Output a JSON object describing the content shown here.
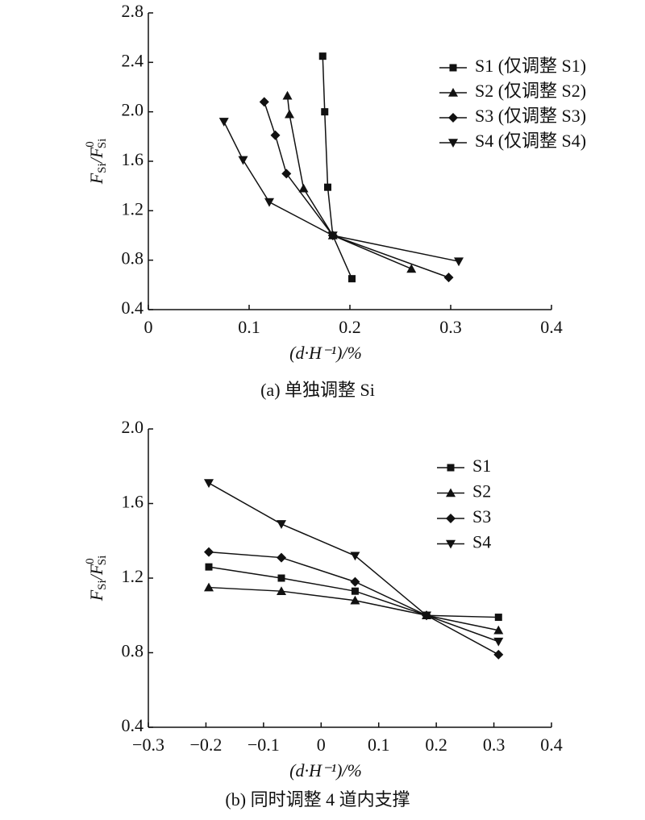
{
  "chart_data": [
    {
      "type": "line",
      "caption": "(a) 单独调整 Si",
      "ylabel": [
        "F",
        "Si",
        "/F",
        "0",
        "Si"
      ],
      "xlabel": "(d·H⁻¹)/%",
      "xlim": [
        0,
        0.4
      ],
      "xticks": [
        0,
        0.1,
        0.2,
        0.3,
        0.4
      ],
      "ylim": [
        0.4,
        2.8
      ],
      "yticks": [
        0.4,
        0.8,
        1.2,
        1.6,
        {
          "value": 2,
          "label": "2.0"
        },
        2.4,
        2.8
      ],
      "legend": "upper right",
      "color": "#111",
      "series": [
        {
          "name": "S1 (仅调整 S1)",
          "marker": "square",
          "x": [
            0.173,
            0.175,
            0.178,
            0.183,
            0.202
          ],
          "values": [
            2.45,
            2.0,
            1.39,
            1.0,
            0.65
          ]
        },
        {
          "name": "S2 (仅调整 S2)",
          "marker": "triangle-up",
          "x": [
            0.138,
            0.14,
            0.154,
            0.183,
            0.261
          ],
          "values": [
            2.13,
            1.98,
            1.38,
            1.0,
            0.73
          ]
        },
        {
          "name": "S3 (仅调整 S3)",
          "marker": "diamond",
          "x": [
            0.115,
            0.126,
            0.137,
            0.183,
            0.298
          ],
          "values": [
            2.08,
            1.81,
            1.5,
            1.0,
            0.66
          ]
        },
        {
          "name": "S4 (仅调整 S4)",
          "marker": "triangle-down",
          "x": [
            0.075,
            0.094,
            0.12,
            0.183,
            0.308
          ],
          "values": [
            1.92,
            1.61,
            1.27,
            1.0,
            0.79
          ]
        }
      ]
    },
    {
      "type": "line",
      "caption": "(b) 同时调整 4 道内支撑",
      "ylabel": [
        "F",
        "Si",
        "/F",
        "0",
        "Si"
      ],
      "xlabel": "(d·H⁻¹)/%",
      "xlim": [
        -0.3,
        0.4
      ],
      "xticks": [
        {
          "value": -0.3,
          "label": "−0.3"
        },
        {
          "value": -0.2,
          "label": "−0.2"
        },
        {
          "value": -0.1,
          "label": "−0.1"
        },
        0,
        0.1,
        0.2,
        0.3,
        0.4
      ],
      "ylim": [
        0.4,
        2.0
      ],
      "yticks": [
        0.4,
        0.8,
        1.2,
        1.6,
        {
          "value": 2,
          "label": "2.0"
        }
      ],
      "legend": "upper right",
      "color": "#111",
      "series": [
        {
          "name": "S1",
          "marker": "square",
          "x": [
            -0.195,
            -0.069,
            0.059,
            0.183,
            0.308
          ],
          "values": [
            1.26,
            1.2,
            1.13,
            1.0,
            0.99
          ]
        },
        {
          "name": "S2",
          "marker": "triangle-up",
          "x": [
            -0.195,
            -0.069,
            0.059,
            0.183,
            0.308
          ],
          "values": [
            1.15,
            1.13,
            1.08,
            1.0,
            0.92
          ]
        },
        {
          "name": "S3",
          "marker": "diamond",
          "x": [
            -0.195,
            -0.069,
            0.059,
            0.183,
            0.308
          ],
          "values": [
            1.34,
            1.31,
            1.18,
            1.0,
            0.79
          ]
        },
        {
          "name": "S4",
          "marker": "triangle-down",
          "x": [
            -0.195,
            -0.069,
            0.059,
            0.183,
            0.308
          ],
          "values": [
            1.71,
            1.49,
            1.32,
            1.0,
            0.86
          ]
        }
      ]
    }
  ]
}
